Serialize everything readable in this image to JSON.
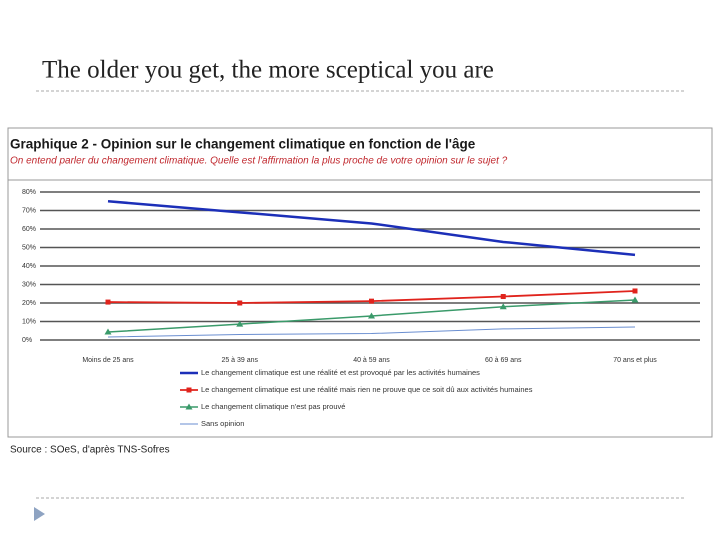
{
  "slide_title": "The older you get, the more sceptical you are",
  "chart_data": {
    "type": "line",
    "title": "Graphique 2 - Opinion sur le changement climatique en fonction de l'âge",
    "subtitle": "On entend parler du changement climatique. Quelle est l'affirmation la plus proche de votre opinion sur le sujet ?",
    "source": "Source : SOeS, d'après TNS-Sofres",
    "categories": [
      "Moins de 25 ans",
      "25 à 39 ans",
      "40 à 59 ans",
      "60 à 69 ans",
      "70 ans et plus"
    ],
    "ylim": [
      0,
      80
    ],
    "yticks": [
      {
        "value": 0,
        "label": "0%"
      },
      {
        "value": 10,
        "label": "10%"
      },
      {
        "value": 20,
        "label": "20%"
      },
      {
        "value": 30,
        "label": "30%"
      },
      {
        "value": 40,
        "label": "40%"
      },
      {
        "value": 50,
        "label": "50%"
      },
      {
        "value": 60,
        "label": "60%"
      },
      {
        "value": 70,
        "label": "70%"
      },
      {
        "value": 80,
        "label": "80%"
      }
    ],
    "grid": true,
    "series": [
      {
        "name": "Le changement climatique est une réalité et est provoqué par les activités humaines",
        "color": "#1c2fb8",
        "marker": "none",
        "values": [
          75,
          69,
          63,
          53,
          46
        ]
      },
      {
        "name": "Le changement climatique est une réalité mais rien ne prouve que ce soit dû aux activités humaines",
        "color": "#e0231c",
        "marker": "square",
        "values": [
          20.5,
          20,
          21,
          23.5,
          26.5
        ]
      },
      {
        "name": "Le changement climatique n'est pas prouvé",
        "color": "#3a9a6a",
        "marker": "triangle",
        "values": [
          4.3,
          8.6,
          13,
          18,
          21.6
        ]
      },
      {
        "name": "Sans opinion",
        "color": "#6a8ed0",
        "marker": "none",
        "values": [
          1.6,
          3,
          3.5,
          6,
          7
        ]
      }
    ]
  }
}
